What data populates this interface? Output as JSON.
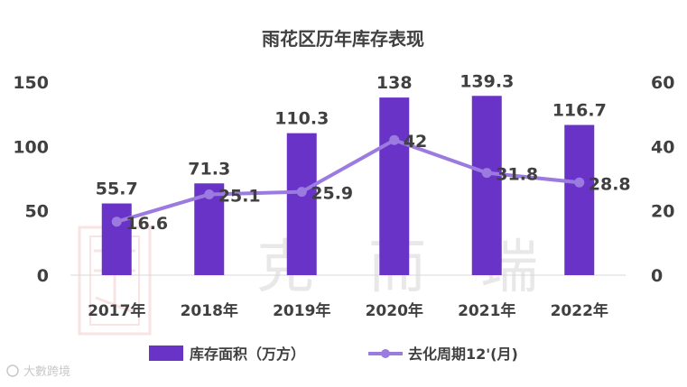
{
  "chart_data": {
    "type": "bar",
    "title": "雨花区历年库存表现",
    "categories": [
      "2017年",
      "2018年",
      "2019年",
      "2020年",
      "2021年",
      "2022年"
    ],
    "series": [
      {
        "name": "库存面积（万方）",
        "type": "bar",
        "axis": "left",
        "values": [
          55.7,
          71.3,
          110.3,
          138,
          139.3,
          116.7
        ]
      },
      {
        "name": "去化周期12'(月)",
        "type": "line",
        "axis": "right",
        "values": [
          16.6,
          25.1,
          25.9,
          42,
          31.8,
          28.8
        ]
      }
    ],
    "y_left": {
      "min": 0,
      "max": 150,
      "ticks": [
        "0",
        "50",
        "100",
        "150"
      ]
    },
    "y_right": {
      "min": 0,
      "max": 60,
      "ticks": [
        "0",
        "20",
        "40",
        "60"
      ]
    },
    "bar_labels": [
      "55.7",
      "71.3",
      "110.3",
      "138",
      "139.3",
      "116.7"
    ],
    "line_labels": [
      "16.6",
      "25.1",
      "25.9",
      "42",
      "31.8",
      "28.8"
    ],
    "legend_position": "bottom",
    "grid": false,
    "colors": {
      "bar": "#6a33c8",
      "line": "#9b7be0",
      "text": "#404040"
    }
  },
  "watermark": {
    "text": "克而瑞",
    "credit": "大數跨境"
  }
}
